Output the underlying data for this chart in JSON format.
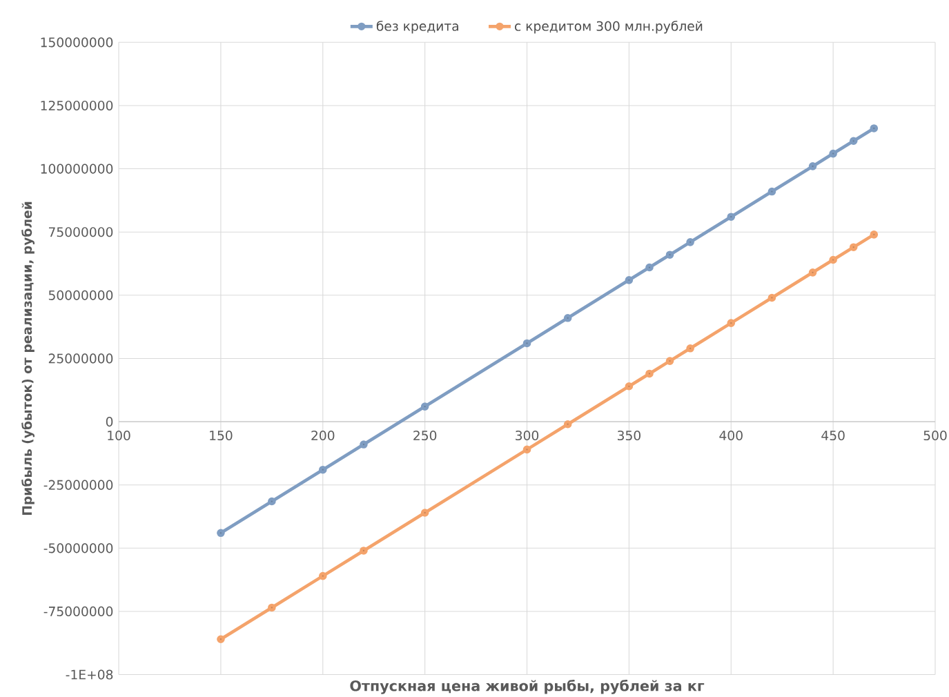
{
  "chart_data": {
    "type": "line",
    "xlabel": "Отпускная цена живой рыбы, рублей за кг",
    "ylabel": "Прибыль (убыток) от реализации, рублей",
    "x": [
      150,
      175,
      200,
      220,
      250,
      300,
      320,
      350,
      360,
      370,
      380,
      400,
      420,
      440,
      450,
      460,
      470
    ],
    "series": [
      {
        "name": "без кредита",
        "color": "#7f9dc2",
        "values": [
          -44000000,
          -31500000,
          -19000000,
          -9000000,
          6000000,
          31000000,
          41000000,
          56000000,
          61000000,
          66000000,
          71000000,
          81000000,
          91000000,
          101000000,
          106000000,
          111000000,
          116000000
        ]
      },
      {
        "name": "с кредитом 300 млн.рублей",
        "color": "#f4a36b",
        "values": [
          -86000000,
          -73500000,
          -61000000,
          -51000000,
          -36000000,
          -11000000,
          -1000000,
          14000000,
          19000000,
          24000000,
          29000000,
          39000000,
          49000000,
          59000000,
          64000000,
          69000000,
          74000000
        ]
      }
    ],
    "xlim": [
      100,
      500
    ],
    "xticks": [
      100,
      150,
      200,
      250,
      300,
      350,
      400,
      450,
      500
    ],
    "ylim": [
      -100000000,
      150000000
    ],
    "yticks": [
      {
        "value": -100000000,
        "label": "-1E+08"
      },
      -75000000,
      -50000000,
      -25000000,
      0,
      25000000,
      50000000,
      75000000,
      100000000,
      125000000,
      150000000
    ],
    "grid": true,
    "legend": "top",
    "marker": "circle",
    "line_style": "solid"
  }
}
